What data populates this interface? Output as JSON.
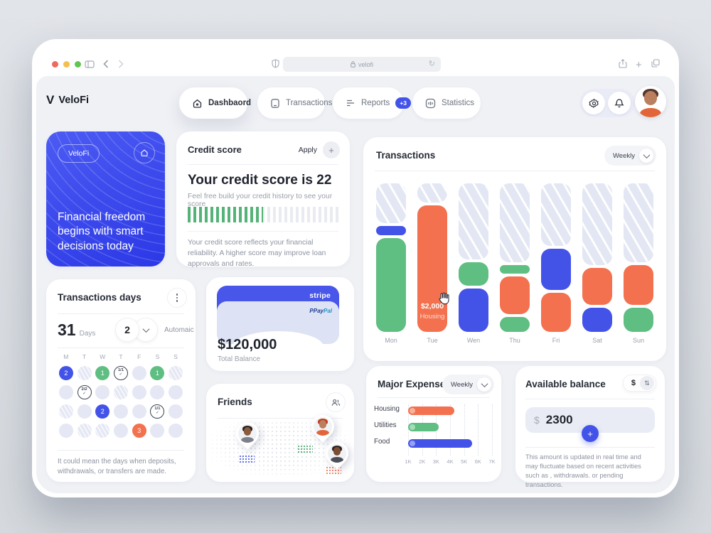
{
  "browser": {
    "url_text": "velofi"
  },
  "brand": {
    "name": "VeloFi"
  },
  "nav": {
    "items": [
      {
        "label": "Dashbaord",
        "icon": "home",
        "active": true
      },
      {
        "label": "Transactions",
        "icon": "receipt",
        "active": false
      },
      {
        "label": "Reports",
        "icon": "report-lines",
        "badge": "+3",
        "active": false
      },
      {
        "label": "Statistics",
        "icon": "equalizer",
        "active": false
      }
    ]
  },
  "promo": {
    "pill": "VeloFi",
    "message": "Financial freedom begins with smart decisions today"
  },
  "credit": {
    "title": "Credit score",
    "apply_label": "Apply",
    "headline": "Your credit score is 22",
    "sub": "Feel free build your credit history to see your score",
    "progress_percent": 50,
    "note": "Your credit score reflects your financial reliability. A higher score may improve loan approvals and rates."
  },
  "transactions": {
    "title": "Transactions",
    "filter": "Weekly",
    "tooltip": {
      "amount": "$2,000",
      "category": "Housing"
    },
    "chart": {
      "type": "stacked-bar",
      "days": [
        "Mon",
        "Tue",
        "Wen",
        "Thu",
        "Fri",
        "Sat",
        "Sun"
      ],
      "columns": [
        {
          "day": "Mon",
          "segments": [
            {
              "kind": "track",
              "pct": 27
            },
            {
              "kind": "blue",
              "pct": 6
            },
            {
              "kind": "green",
              "pct": 60
            }
          ]
        },
        {
          "day": "Tue",
          "segments": [
            {
              "kind": "track",
              "pct": 13
            },
            {
              "kind": "orange",
              "pct": 82
            }
          ],
          "tooltip": true
        },
        {
          "day": "Wen",
          "segments": [
            {
              "kind": "track",
              "pct": 51
            },
            {
              "kind": "green",
              "pct": 16
            },
            {
              "kind": "blue",
              "pct": 27
            }
          ]
        },
        {
          "day": "Thu",
          "segments": [
            {
              "kind": "track",
              "pct": 53
            },
            {
              "kind": "green",
              "pct": 6
            },
            {
              "kind": "orange",
              "pct": 25
            },
            {
              "kind": "green",
              "pct": 6
            }
          ]
        },
        {
          "day": "Fri",
          "segments": [
            {
              "kind": "track",
              "pct": 42
            },
            {
              "kind": "blue",
              "pct": 28
            },
            {
              "kind": "orange",
              "pct": 24
            }
          ]
        },
        {
          "day": "Sat",
          "segments": [
            {
              "kind": "track",
              "pct": 55
            },
            {
              "kind": "orange",
              "pct": 25
            },
            {
              "kind": "blue",
              "pct": 14
            }
          ]
        },
        {
          "day": "Sun",
          "segments": [
            {
              "kind": "track",
              "pct": 53
            },
            {
              "kind": "orange",
              "pct": 27
            },
            {
              "kind": "green",
              "pct": 14
            }
          ]
        }
      ]
    }
  },
  "days_card": {
    "title": "Transactions days",
    "count": "31",
    "count_label": "Days",
    "select_value": "2",
    "select_label": "Automaic",
    "weekdays": [
      "M",
      "T",
      "W",
      "T",
      "F",
      "S",
      "S"
    ],
    "cells": [
      {
        "v": "blue",
        "t": "2"
      },
      {
        "v": "hatch",
        "t": ""
      },
      {
        "v": "green",
        "t": "1"
      },
      {
        "v": "outline",
        "t": "1/1"
      },
      {
        "v": "plain",
        "t": ""
      },
      {
        "v": "green",
        "t": "1"
      },
      {
        "v": "hatch",
        "t": ""
      },
      {
        "v": "plain",
        "t": ""
      },
      {
        "v": "outline",
        "t": "2/2"
      },
      {
        "v": "plain",
        "t": ""
      },
      {
        "v": "hatch",
        "t": ""
      },
      {
        "v": "plain",
        "t": ""
      },
      {
        "v": "plain",
        "t": ""
      },
      {
        "v": "plain",
        "t": ""
      },
      {
        "v": "hatch",
        "t": ""
      },
      {
        "v": "plain",
        "t": ""
      },
      {
        "v": "blue",
        "t": "2"
      },
      {
        "v": "plain",
        "t": ""
      },
      {
        "v": "plain",
        "t": ""
      },
      {
        "v": "outline",
        "t": "1/1"
      },
      {
        "v": "plain",
        "t": ""
      },
      {
        "v": "plain",
        "t": ""
      },
      {
        "v": "hatch",
        "t": ""
      },
      {
        "v": "hatch",
        "t": ""
      },
      {
        "v": "plain",
        "t": ""
      },
      {
        "v": "orange",
        "t": "3"
      },
      {
        "v": "plain",
        "t": ""
      },
      {
        "v": "plain",
        "t": ""
      }
    ],
    "note": "It could mean the days when deposits, withdrawals, or transfers are made."
  },
  "balance": {
    "provider": "stripe",
    "paypal_pay": "Pay",
    "paypal_pal": "Pal",
    "paypal_p": "P",
    "amount": "$120,000",
    "label": "Total Balance"
  },
  "friends": {
    "title": "Friends"
  },
  "expenses": {
    "title": "Major Expenses",
    "filter": "Weekly",
    "chart": {
      "type": "bar",
      "orientation": "horizontal",
      "categories": [
        "Housing",
        "Utilities",
        "Food"
      ],
      "values": [
        4300,
        3200,
        5600
      ],
      "colors": [
        "#f3714e",
        "#5fbe82",
        "#4353e8"
      ],
      "x_ticks": [
        "1K",
        "2K",
        "3K",
        "4K",
        "5K",
        "6K",
        "7K"
      ],
      "x_range": [
        1000,
        7000
      ],
      "grid": "dotted-vertical"
    }
  },
  "available": {
    "title": "Available balance",
    "currency": "$",
    "input_prefix": "$",
    "amount": "2300",
    "note": "This amount is updated in real time and may fluctuate based on recent activities such as , withdrawals. or pending transactions."
  },
  "colors": {
    "accent_blue": "#4353e8",
    "green": "#5fbe82",
    "orange": "#f3714e"
  }
}
